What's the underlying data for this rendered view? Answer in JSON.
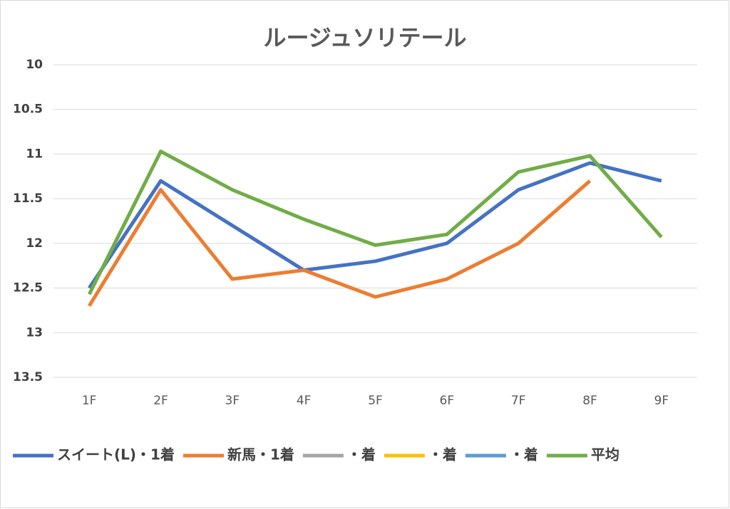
{
  "chart_data": {
    "type": "line",
    "title": "ルージュソリテール",
    "categories": [
      "1F",
      "2F",
      "3F",
      "4F",
      "5F",
      "6F",
      "7F",
      "8F",
      "9F"
    ],
    "series": [
      {
        "name": "スイート(L)・1着",
        "color": "#4472c4",
        "values": [
          12.5,
          11.3,
          11.8,
          12.3,
          12.2,
          12.0,
          11.4,
          11.1,
          11.3
        ]
      },
      {
        "name": "新馬・1着",
        "color": "#ed7d31",
        "values": [
          12.7,
          11.4,
          12.4,
          12.3,
          12.6,
          12.4,
          12.0,
          11.3,
          null
        ]
      },
      {
        "name": "・着",
        "color": "#a5a5a5",
        "values": [
          null,
          null,
          null,
          null,
          null,
          null,
          null,
          null,
          null
        ]
      },
      {
        "name": "・着",
        "color": "#ffc000",
        "values": [
          null,
          null,
          null,
          null,
          null,
          null,
          null,
          null,
          null
        ]
      },
      {
        "name": "・着",
        "color": "#5b9bd5",
        "values": [
          null,
          null,
          null,
          null,
          null,
          null,
          null,
          null,
          null
        ]
      },
      {
        "name": "平均",
        "color": "#70ad47",
        "values": [
          12.57,
          10.97,
          11.4,
          11.73,
          12.02,
          11.9,
          11.2,
          11.02,
          11.93
        ]
      }
    ],
    "ylim": [
      10,
      13.5
    ],
    "y_inverted": true,
    "yticks": [
      10,
      10.5,
      11,
      11.5,
      12,
      12.5,
      13,
      13.5
    ],
    "grid": true,
    "legend": "bottom"
  }
}
